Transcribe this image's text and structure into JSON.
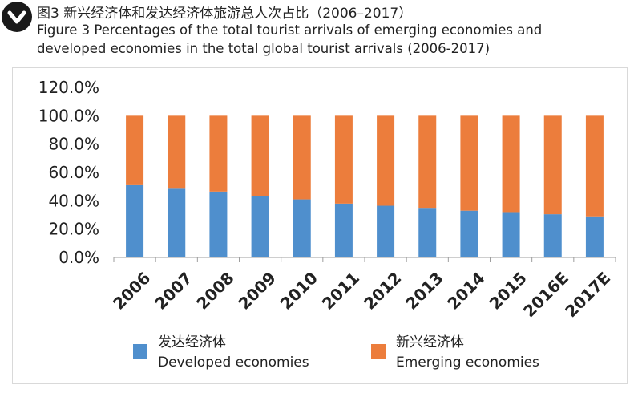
{
  "header": {
    "logo_icon": "chevron-down-badge-icon",
    "title_cn": "图3 新兴经济体和发达经济体旅游总人次占比（2006–2017）",
    "title_en": "Figure 3 Percentages of the total tourist arrivals of emerging economies and developed economies in the total global tourist arrivals (2006-2017)"
  },
  "chart_data": {
    "type": "bar",
    "stacked": true,
    "categories": [
      "2006",
      "2007",
      "2008",
      "2009",
      "2010",
      "2011",
      "2012",
      "2013",
      "2014",
      "2015",
      "2016E",
      "2017E"
    ],
    "series": [
      {
        "name_cn": "发达经济体",
        "name": "Developed economies",
        "color": "#4f8fcd",
        "values": [
          51.0,
          48.5,
          46.5,
          43.5,
          41.0,
          38.0,
          36.5,
          35.0,
          33.0,
          32.0,
          30.5,
          29.0
        ]
      },
      {
        "name_cn": "新兴经济体",
        "name": "Emerging economies",
        "color": "#ec7d3c",
        "values": [
          49.0,
          51.5,
          53.5,
          56.5,
          59.0,
          62.0,
          63.5,
          65.0,
          67.0,
          68.0,
          69.5,
          71.0
        ]
      }
    ],
    "ylim": [
      0,
      120
    ],
    "yticks": [
      "0.0%",
      "20.0%",
      "40.0%",
      "60.0%",
      "80.0%",
      "100.0%",
      "120.0%"
    ],
    "grid": false,
    "legend_position": "bottom"
  }
}
